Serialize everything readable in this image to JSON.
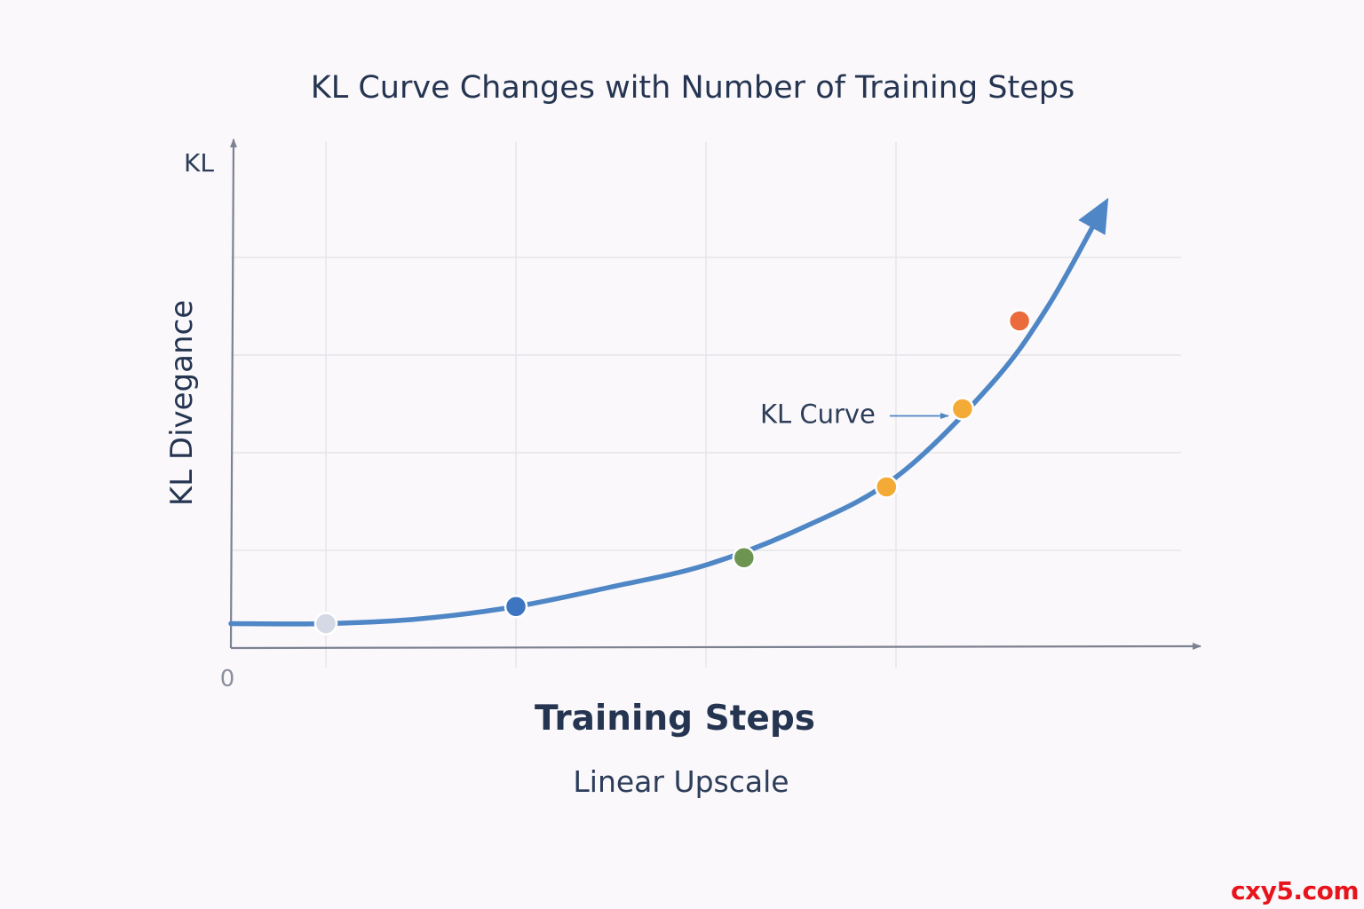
{
  "chart_data": {
    "type": "line",
    "title": "KL Curve Changes with Number of Training Steps",
    "xlabel": "Training Steps",
    "subtitle": "Linear Upscale",
    "ylabel": "KL Divegance",
    "y_axis_top_label": "KL",
    "x_origin_label": "0",
    "xlim": [
      0,
      10
    ],
    "ylim": [
      0,
      10
    ],
    "grid": true,
    "grid_x": [
      1,
      3,
      5,
      7
    ],
    "grid_y": [
      2,
      4,
      6,
      8
    ],
    "curve": [
      {
        "x": 0,
        "y": 0.5
      },
      {
        "x": 1,
        "y": 0.5
      },
      {
        "x": 2,
        "y": 0.6
      },
      {
        "x": 3,
        "y": 0.85
      },
      {
        "x": 4,
        "y": 1.25
      },
      {
        "x": 5,
        "y": 1.7
      },
      {
        "x": 6,
        "y": 2.45
      },
      {
        "x": 7,
        "y": 3.5
      },
      {
        "x": 8,
        "y": 5.4
      },
      {
        "x": 8.6,
        "y": 7.0
      },
      {
        "x": 9.2,
        "y": 9.1
      }
    ],
    "series": [
      {
        "name": "KL Curve",
        "color": "#4f86c6",
        "points": [
          {
            "x": 1.0,
            "y": 0.5,
            "color": "#d5d9e5"
          },
          {
            "x": 3.0,
            "y": 0.85,
            "color": "#3e75c0"
          },
          {
            "x": 5.4,
            "y": 1.85,
            "color": "#6d9451"
          },
          {
            "x": 6.9,
            "y": 3.3,
            "color": "#f4aa36"
          },
          {
            "x": 7.7,
            "y": 4.9,
            "color": "#f4aa36"
          },
          {
            "x": 8.3,
            "y": 6.7,
            "color": "#ec6b3c"
          }
        ]
      }
    ],
    "annotations": [
      {
        "text": "KL Curve",
        "target_point": 4
      }
    ]
  },
  "watermark": "cxy5.com"
}
